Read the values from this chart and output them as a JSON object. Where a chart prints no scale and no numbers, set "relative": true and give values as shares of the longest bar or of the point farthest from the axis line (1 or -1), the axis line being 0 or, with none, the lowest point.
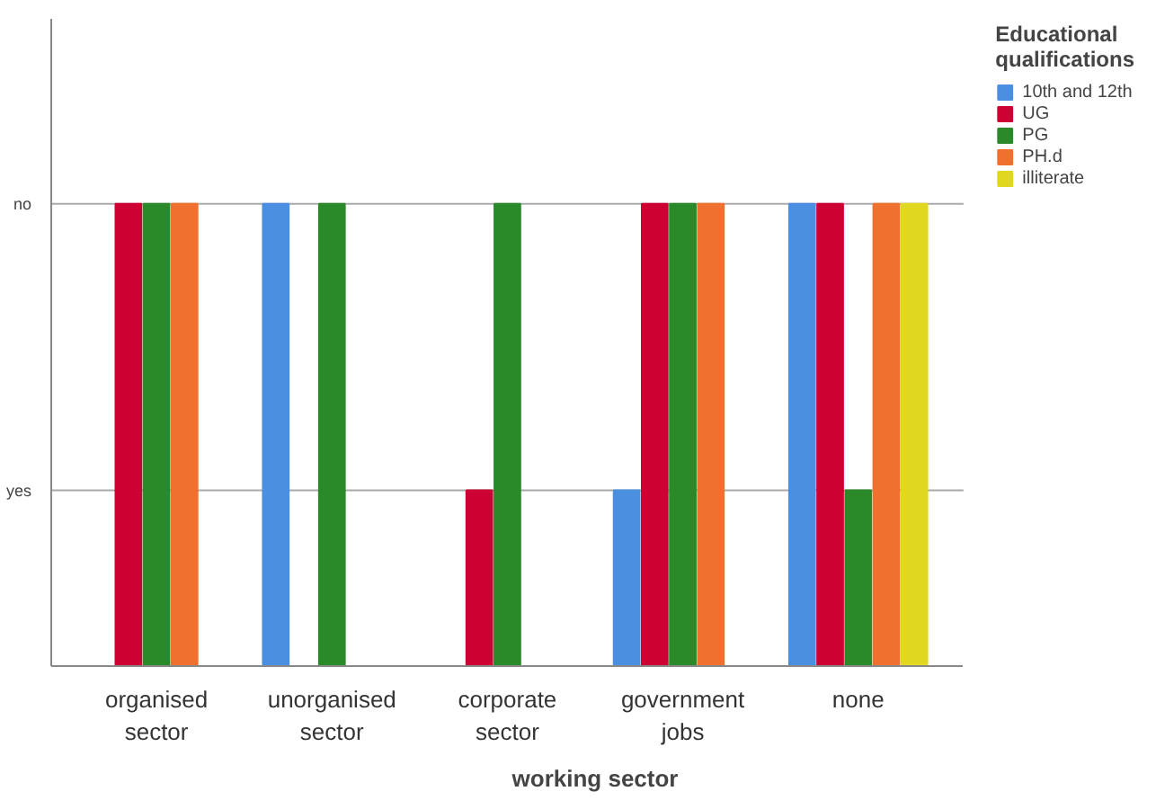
{
  "chart_data": {
    "type": "bar",
    "xlabel": "working sector",
    "legend_title": "Educational qualifications",
    "relative": true,
    "categories": [
      "organised sector",
      "unorganised sector",
      "corporate sector",
      "government jobs",
      "none"
    ],
    "series": [
      {
        "name": "10th and 12th",
        "color": "#4a8fe0",
        "values": [
          null,
          1,
          null,
          0.38,
          1
        ]
      },
      {
        "name": "UG",
        "color": "#cc0033",
        "values": [
          1,
          null,
          0.38,
          1,
          1
        ]
      },
      {
        "name": "PG",
        "color": "#2a8a2a",
        "values": [
          1,
          1,
          1,
          1,
          0.38
        ]
      },
      {
        "name": "PH.d",
        "color": "#f07030",
        "values": [
          1,
          null,
          null,
          1,
          1
        ]
      },
      {
        "name": "illiterate",
        "color": "#e0d820",
        "values": [
          null,
          null,
          null,
          null,
          1
        ]
      }
    ],
    "ref_lines": [
      {
        "axis": "y",
        "value": 0.38,
        "label": "yes",
        "color": "#aaaaaa"
      },
      {
        "axis": "y",
        "value": 1,
        "label": "no",
        "color": "#aaaaaa"
      }
    ],
    "legend": "top right"
  }
}
